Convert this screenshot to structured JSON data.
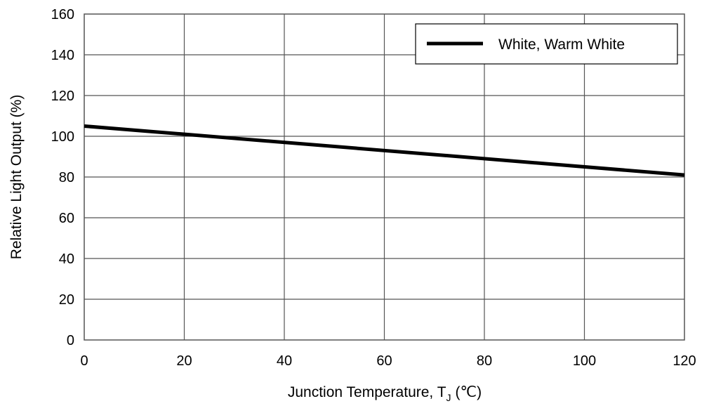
{
  "chart_data": {
    "type": "line",
    "x_title": "Junction Temperature, T",
    "x_title_subscript": "J",
    "x_title_unit": "(℃)",
    "y_title": "Relative Light Output (%)",
    "xlim": [
      0,
      120
    ],
    "ylim": [
      0,
      160
    ],
    "x_ticks": [
      0,
      20,
      40,
      60,
      80,
      100,
      120
    ],
    "y_ticks": [
      0,
      20,
      40,
      60,
      80,
      100,
      120,
      140,
      160
    ],
    "grid": true,
    "legend_position": "top-right",
    "series": [
      {
        "name": "White, Warm White",
        "color": "#000000",
        "x": [
          0,
          120
        ],
        "y": [
          105,
          81
        ]
      }
    ]
  }
}
